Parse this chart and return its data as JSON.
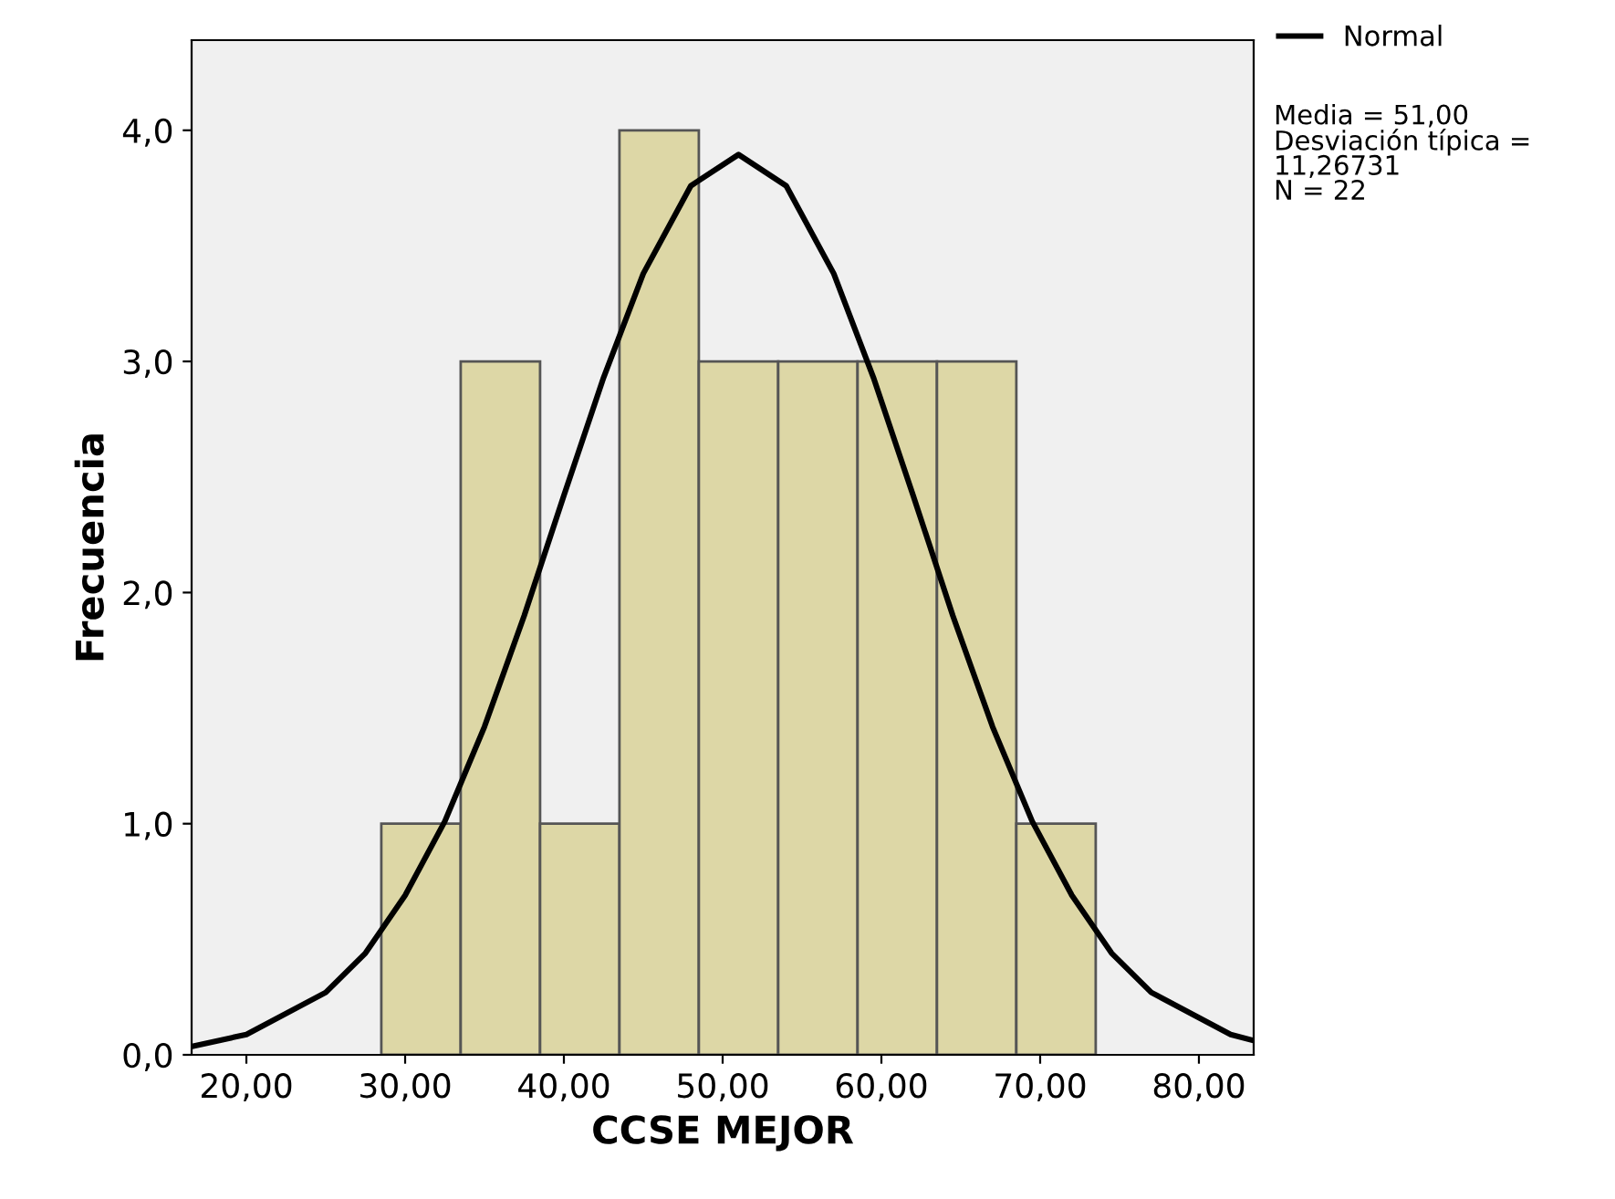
{
  "chart_data": {
    "type": "histogram",
    "xlabel": "CCSE MEJOR",
    "ylabel": "Frecuencia",
    "bins": [
      28.5,
      33.5,
      38.5,
      43.5,
      48.5,
      53.5,
      58.5,
      63.5,
      68.5,
      73.5
    ],
    "values": [
      1,
      3,
      1,
      4,
      3,
      3,
      3,
      3,
      1
    ],
    "color": "#ddd7a6",
    "xlim": [
      16.55,
      83.45
    ],
    "ylim": [
      0,
      4.39
    ],
    "xticks": [
      {
        "value": 20,
        "label": "20,00"
      },
      {
        "value": 30,
        "label": "30,00"
      },
      {
        "value": 40,
        "label": "40,00"
      },
      {
        "value": 50,
        "label": "50,00"
      },
      {
        "value": 60,
        "label": "60,00"
      },
      {
        "value": 70,
        "label": "70,00"
      },
      {
        "value": 80,
        "label": "80,00"
      }
    ],
    "yticks": [
      {
        "value": 0,
        "label": "0,0"
      },
      {
        "value": 1,
        "label": "1,0"
      },
      {
        "value": 2,
        "label": "2,0"
      },
      {
        "value": 3,
        "label": "3,0"
      },
      {
        "value": 4,
        "label": "4,0"
      }
    ],
    "series": [
      {
        "name": "Normal",
        "type": "line",
        "color": "#000000",
        "x": [
          16.55,
          20,
          25,
          27.5,
          30,
          32.5,
          35,
          37.5,
          40,
          42.5,
          45,
          48,
          51,
          54,
          57,
          59.5,
          62,
          64.5,
          67,
          69.5,
          72,
          74.5,
          77,
          82,
          83.45
        ],
        "values": [
          0.036,
          0.088,
          0.27,
          0.44,
          0.69,
          1.01,
          1.42,
          1.9,
          2.42,
          2.93,
          3.38,
          3.76,
          3.895,
          3.76,
          3.38,
          2.93,
          2.42,
          1.9,
          1.42,
          1.01,
          0.69,
          0.44,
          0.27,
          0.088,
          0.062
        ]
      }
    ],
    "legend": "top right",
    "grid": false,
    "annotations": [
      "Media = 51,00\nDesviación típica =\n11,26731\nN = 22"
    ]
  }
}
